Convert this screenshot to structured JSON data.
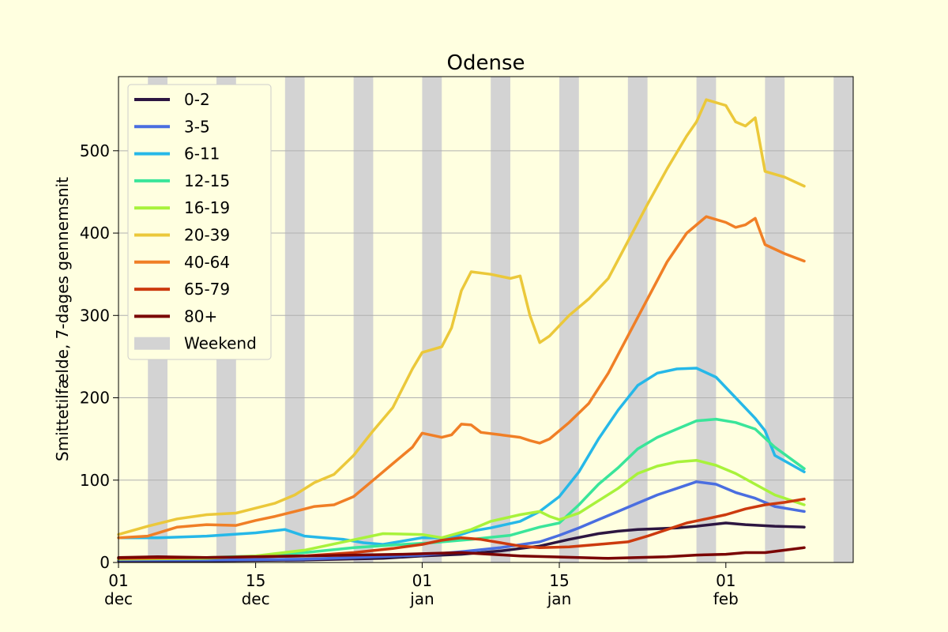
{
  "chart_data": {
    "type": "line",
    "title": "Odense",
    "xlabel": "",
    "ylabel": "Smittetilfælde, 7-dages gennemsnit",
    "ylim": [
      0,
      590
    ],
    "yticks": [
      0,
      100,
      200,
      300,
      400,
      500
    ],
    "x_range": [
      "2021-12-01",
      "2022-02-14"
    ],
    "xticks": [
      {
        "date": "2021-12-01",
        "day": "01",
        "month": "dec"
      },
      {
        "date": "2021-12-15",
        "day": "15",
        "month": "dec"
      },
      {
        "date": "2022-01-01",
        "day": "01",
        "month": "jan"
      },
      {
        "date": "2022-01-15",
        "day": "15",
        "month": "jan"
      },
      {
        "date": "2022-02-01",
        "day": "01",
        "month": "feb"
      }
    ],
    "grid": "horizontal",
    "legend_position": "top-left",
    "weekend_label": "Weekend",
    "weekend_color": "#d3d3d3",
    "weekends": [
      [
        "2021-12-04",
        "2021-12-05"
      ],
      [
        "2021-12-11",
        "2021-12-12"
      ],
      [
        "2021-12-18",
        "2021-12-19"
      ],
      [
        "2021-12-25",
        "2021-12-26"
      ],
      [
        "2022-01-01",
        "2022-01-02"
      ],
      [
        "2022-01-08",
        "2022-01-09"
      ],
      [
        "2022-01-15",
        "2022-01-16"
      ],
      [
        "2022-01-22",
        "2022-01-23"
      ],
      [
        "2022-01-29",
        "2022-01-30"
      ],
      [
        "2022-02-05",
        "2022-02-06"
      ],
      [
        "2022-02-12",
        "2022-02-13"
      ]
    ],
    "series": [
      {
        "name": "0-2",
        "color": "#2d1641",
        "points": [
          [
            "2021-12-01",
            2
          ],
          [
            "2021-12-10",
            2
          ],
          [
            "2021-12-20",
            3
          ],
          [
            "2021-12-28",
            5
          ],
          [
            "2022-01-01",
            8
          ],
          [
            "2022-01-05",
            10
          ],
          [
            "2022-01-09",
            14
          ],
          [
            "2022-01-13",
            20
          ],
          [
            "2022-01-16",
            28
          ],
          [
            "2022-01-19",
            35
          ],
          [
            "2022-01-21",
            38
          ],
          [
            "2022-01-23",
            40
          ],
          [
            "2022-01-27",
            42
          ],
          [
            "2022-01-29",
            44
          ],
          [
            "2022-02-01",
            48
          ],
          [
            "2022-02-03",
            46
          ],
          [
            "2022-02-06",
            44
          ],
          [
            "2022-02-09",
            43
          ]
        ]
      },
      {
        "name": "3-5",
        "color": "#4a6ee0",
        "points": [
          [
            "2021-12-01",
            3
          ],
          [
            "2021-12-10",
            3
          ],
          [
            "2021-12-20",
            4
          ],
          [
            "2021-12-25",
            6
          ],
          [
            "2022-01-01",
            9
          ],
          [
            "2022-01-05",
            13
          ],
          [
            "2022-01-09",
            18
          ],
          [
            "2022-01-13",
            25
          ],
          [
            "2022-01-15",
            33
          ],
          [
            "2022-01-17",
            42
          ],
          [
            "2022-01-19",
            52
          ],
          [
            "2022-01-21",
            62
          ],
          [
            "2022-01-23",
            72
          ],
          [
            "2022-01-25",
            82
          ],
          [
            "2022-01-27",
            90
          ],
          [
            "2022-01-29",
            98
          ],
          [
            "2022-01-31",
            95
          ],
          [
            "2022-02-02",
            85
          ],
          [
            "2022-02-04",
            78
          ],
          [
            "2022-02-06",
            68
          ],
          [
            "2022-02-09",
            62
          ]
        ]
      },
      {
        "name": "6-11",
        "color": "#26b8e8",
        "points": [
          [
            "2021-12-01",
            30
          ],
          [
            "2021-12-05",
            30
          ],
          [
            "2021-12-10",
            32
          ],
          [
            "2021-12-15",
            36
          ],
          [
            "2021-12-18",
            40
          ],
          [
            "2021-12-20",
            32
          ],
          [
            "2021-12-22",
            30
          ],
          [
            "2021-12-24",
            28
          ],
          [
            "2021-12-26",
            24
          ],
          [
            "2021-12-28",
            22
          ],
          [
            "2022-01-01",
            30
          ],
          [
            "2022-01-04",
            30
          ],
          [
            "2022-01-06",
            38
          ],
          [
            "2022-01-08",
            42
          ],
          [
            "2022-01-11",
            50
          ],
          [
            "2022-01-13",
            62
          ],
          [
            "2022-01-15",
            80
          ],
          [
            "2022-01-17",
            110
          ],
          [
            "2022-01-19",
            150
          ],
          [
            "2022-01-21",
            185
          ],
          [
            "2022-01-23",
            215
          ],
          [
            "2022-01-25",
            230
          ],
          [
            "2022-01-27",
            235
          ],
          [
            "2022-01-29",
            236
          ],
          [
            "2022-01-31",
            225
          ],
          [
            "2022-02-02",
            200
          ],
          [
            "2022-02-04",
            175
          ],
          [
            "2022-02-05",
            160
          ],
          [
            "2022-02-06",
            130
          ],
          [
            "2022-02-09",
            110
          ]
        ]
      },
      {
        "name": "12-15",
        "color": "#3ae59a",
        "points": [
          [
            "2021-12-01",
            5
          ],
          [
            "2021-12-10",
            6
          ],
          [
            "2021-12-15",
            8
          ],
          [
            "2021-12-20",
            12
          ],
          [
            "2021-12-25",
            18
          ],
          [
            "2021-12-30",
            22
          ],
          [
            "2022-01-02",
            24
          ],
          [
            "2022-01-06",
            28
          ],
          [
            "2022-01-10",
            33
          ],
          [
            "2022-01-13",
            43
          ],
          [
            "2022-01-15",
            48
          ],
          [
            "2022-01-17",
            70
          ],
          [
            "2022-01-19",
            95
          ],
          [
            "2022-01-21",
            115
          ],
          [
            "2022-01-23",
            138
          ],
          [
            "2022-01-25",
            152
          ],
          [
            "2022-01-27",
            162
          ],
          [
            "2022-01-29",
            172
          ],
          [
            "2022-01-31",
            174
          ],
          [
            "2022-02-02",
            170
          ],
          [
            "2022-02-04",
            162
          ],
          [
            "2022-02-06",
            140
          ],
          [
            "2022-02-09",
            114
          ]
        ]
      },
      {
        "name": "16-19",
        "color": "#a8f23b",
        "points": [
          [
            "2021-12-01",
            4
          ],
          [
            "2021-12-10",
            5
          ],
          [
            "2021-12-15",
            8
          ],
          [
            "2021-12-20",
            15
          ],
          [
            "2021-12-24",
            25
          ],
          [
            "2021-12-28",
            35
          ],
          [
            "2022-01-01",
            34
          ],
          [
            "2022-01-03",
            30
          ],
          [
            "2022-01-06",
            40
          ],
          [
            "2022-01-08",
            50
          ],
          [
            "2022-01-11",
            58
          ],
          [
            "2022-01-13",
            62
          ],
          [
            "2022-01-14",
            56
          ],
          [
            "2022-01-15",
            52
          ],
          [
            "2022-01-17",
            60
          ],
          [
            "2022-01-19",
            75
          ],
          [
            "2022-01-21",
            90
          ],
          [
            "2022-01-23",
            108
          ],
          [
            "2022-01-25",
            117
          ],
          [
            "2022-01-27",
            122
          ],
          [
            "2022-01-29",
            124
          ],
          [
            "2022-01-31",
            118
          ],
          [
            "2022-02-02",
            108
          ],
          [
            "2022-02-04",
            95
          ],
          [
            "2022-02-06",
            82
          ],
          [
            "2022-02-09",
            70
          ]
        ]
      },
      {
        "name": "20-39",
        "color": "#ebc83a",
        "points": [
          [
            "2021-12-01",
            34
          ],
          [
            "2021-12-04",
            44
          ],
          [
            "2021-12-07",
            53
          ],
          [
            "2021-12-10",
            58
          ],
          [
            "2021-12-13",
            60
          ],
          [
            "2021-12-15",
            66
          ],
          [
            "2021-12-17",
            72
          ],
          [
            "2021-12-19",
            82
          ],
          [
            "2021-12-21",
            97
          ],
          [
            "2021-12-23",
            107
          ],
          [
            "2021-12-25",
            130
          ],
          [
            "2021-12-27",
            160
          ],
          [
            "2021-12-29",
            188
          ],
          [
            "2021-12-31",
            235
          ],
          [
            "2022-01-01",
            255
          ],
          [
            "2022-01-03",
            262
          ],
          [
            "2022-01-04",
            285
          ],
          [
            "2022-01-05",
            330
          ],
          [
            "2022-01-06",
            353
          ],
          [
            "2022-01-08",
            350
          ],
          [
            "2022-01-10",
            345
          ],
          [
            "2022-01-11",
            348
          ],
          [
            "2022-01-12",
            300
          ],
          [
            "2022-01-13",
            267
          ],
          [
            "2022-01-14",
            275
          ],
          [
            "2022-01-16",
            300
          ],
          [
            "2022-01-18",
            320
          ],
          [
            "2022-01-20",
            345
          ],
          [
            "2022-01-22",
            390
          ],
          [
            "2022-01-24",
            435
          ],
          [
            "2022-01-26",
            478
          ],
          [
            "2022-01-28",
            518
          ],
          [
            "2022-01-29",
            535
          ],
          [
            "2022-01-30",
            562
          ],
          [
            "2022-02-01",
            555
          ],
          [
            "2022-02-02",
            535
          ],
          [
            "2022-02-03",
            530
          ],
          [
            "2022-02-04",
            540
          ],
          [
            "2022-02-05",
            475
          ],
          [
            "2022-02-07",
            468
          ],
          [
            "2022-02-09",
            457
          ]
        ]
      },
      {
        "name": "40-64",
        "color": "#f07f26",
        "points": [
          [
            "2021-12-01",
            30
          ],
          [
            "2021-12-04",
            32
          ],
          [
            "2021-12-07",
            43
          ],
          [
            "2021-12-10",
            46
          ],
          [
            "2021-12-13",
            45
          ],
          [
            "2021-12-15",
            51
          ],
          [
            "2021-12-17",
            56
          ],
          [
            "2021-12-19",
            62
          ],
          [
            "2021-12-21",
            68
          ],
          [
            "2021-12-23",
            70
          ],
          [
            "2021-12-25",
            80
          ],
          [
            "2021-12-27",
            100
          ],
          [
            "2021-12-29",
            120
          ],
          [
            "2021-12-31",
            140
          ],
          [
            "2022-01-01",
            157
          ],
          [
            "2022-01-03",
            152
          ],
          [
            "2022-01-04",
            155
          ],
          [
            "2022-01-05",
            168
          ],
          [
            "2022-01-06",
            167
          ],
          [
            "2022-01-07",
            158
          ],
          [
            "2022-01-09",
            155
          ],
          [
            "2022-01-11",
            152
          ],
          [
            "2022-01-12",
            148
          ],
          [
            "2022-01-13",
            145
          ],
          [
            "2022-01-14",
            150
          ],
          [
            "2022-01-16",
            170
          ],
          [
            "2022-01-18",
            193
          ],
          [
            "2022-01-20",
            230
          ],
          [
            "2022-01-22",
            275
          ],
          [
            "2022-01-24",
            320
          ],
          [
            "2022-01-26",
            365
          ],
          [
            "2022-01-28",
            400
          ],
          [
            "2022-01-30",
            420
          ],
          [
            "2022-02-01",
            413
          ],
          [
            "2022-02-02",
            407
          ],
          [
            "2022-02-03",
            410
          ],
          [
            "2022-02-04",
            418
          ],
          [
            "2022-02-05",
            386
          ],
          [
            "2022-02-07",
            375
          ],
          [
            "2022-02-09",
            366
          ]
        ]
      },
      {
        "name": "65-79",
        "color": "#cc3a0e",
        "points": [
          [
            "2021-12-01",
            5
          ],
          [
            "2021-12-10",
            6
          ],
          [
            "2021-12-20",
            8
          ],
          [
            "2021-12-25",
            12
          ],
          [
            "2021-12-29",
            17
          ],
          [
            "2022-01-01",
            22
          ],
          [
            "2022-01-03",
            27
          ],
          [
            "2022-01-05",
            30
          ],
          [
            "2022-01-07",
            28
          ],
          [
            "2022-01-09",
            24
          ],
          [
            "2022-01-11",
            20
          ],
          [
            "2022-01-13",
            18
          ],
          [
            "2022-01-16",
            19
          ],
          [
            "2022-01-19",
            22
          ],
          [
            "2022-01-22",
            25
          ],
          [
            "2022-01-24",
            32
          ],
          [
            "2022-01-26",
            40
          ],
          [
            "2022-01-28",
            48
          ],
          [
            "2022-01-30",
            53
          ],
          [
            "2022-02-01",
            58
          ],
          [
            "2022-02-03",
            65
          ],
          [
            "2022-02-05",
            70
          ],
          [
            "2022-02-07",
            73
          ],
          [
            "2022-02-09",
            77
          ]
        ]
      },
      {
        "name": "80+",
        "color": "#7a0403",
        "points": [
          [
            "2021-12-01",
            6
          ],
          [
            "2021-12-05",
            7
          ],
          [
            "2021-12-10",
            6
          ],
          [
            "2021-12-15",
            7
          ],
          [
            "2021-12-20",
            8
          ],
          [
            "2021-12-25",
            9
          ],
          [
            "2021-12-30",
            10
          ],
          [
            "2022-01-02",
            11
          ],
          [
            "2022-01-05",
            12
          ],
          [
            "2022-01-08",
            10
          ],
          [
            "2022-01-11",
            8
          ],
          [
            "2022-01-14",
            7
          ],
          [
            "2022-01-17",
            6
          ],
          [
            "2022-01-20",
            5
          ],
          [
            "2022-01-23",
            6
          ],
          [
            "2022-01-26",
            7
          ],
          [
            "2022-01-29",
            9
          ],
          [
            "2022-02-01",
            10
          ],
          [
            "2022-02-03",
            12
          ],
          [
            "2022-02-05",
            12
          ],
          [
            "2022-02-07",
            15
          ],
          [
            "2022-02-09",
            18
          ]
        ]
      }
    ]
  }
}
